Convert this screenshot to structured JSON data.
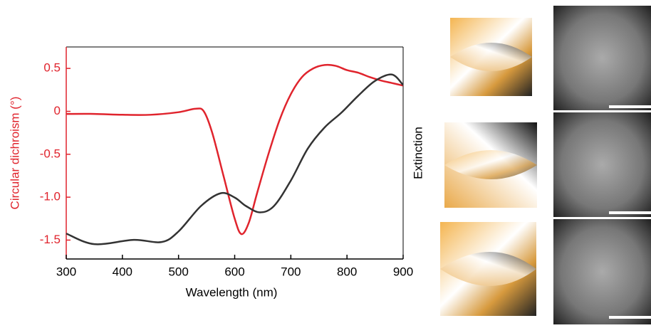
{
  "chart_data": {
    "type": "line",
    "xlabel": "Wavelength (nm)",
    "ylabel": "Circular dichroism (°)",
    "y2label": "Extinction",
    "xlim": [
      300,
      900
    ],
    "xticks": [
      300,
      400,
      500,
      600,
      700,
      800,
      900
    ],
    "ylim": [
      -1.72,
      0.75
    ],
    "yticks": [
      0.5,
      0,
      -0.5,
      {
        "value": -1.0,
        "label": "-1.0"
      },
      -1.5
    ],
    "y2lim": [
      0,
      1
    ],
    "series": [
      {
        "color": "#e0242d",
        "x": [
          300,
          350,
          400,
          450,
          500,
          530,
          545,
          560,
          580,
          600,
          612,
          625,
          640,
          660,
          680,
          700,
          720,
          740,
          760,
          780,
          800,
          820,
          840,
          860,
          880,
          900
        ],
        "values": [
          -0.03,
          -0.03,
          -0.04,
          -0.04,
          -0.01,
          0.03,
          0.0,
          -0.25,
          -0.75,
          -1.25,
          -1.43,
          -1.3,
          -0.95,
          -0.5,
          -0.1,
          0.2,
          0.4,
          0.5,
          0.54,
          0.53,
          0.48,
          0.45,
          0.4,
          0.36,
          0.33,
          0.3
        ]
      },
      {
        "color": "#333333",
        "axis": "y2",
        "x": [
          300,
          350,
          420,
          470,
          500,
          540,
          575,
          600,
          620,
          645,
          670,
          700,
          730,
          760,
          790,
          820,
          850,
          880,
          900
        ],
        "values": [
          0.12,
          0.07,
          0.09,
          0.08,
          0.13,
          0.25,
          0.31,
          0.29,
          0.25,
          0.22,
          0.25,
          0.37,
          0.52,
          0.62,
          0.69,
          0.77,
          0.84,
          0.87,
          0.82
        ]
      }
    ]
  }
}
